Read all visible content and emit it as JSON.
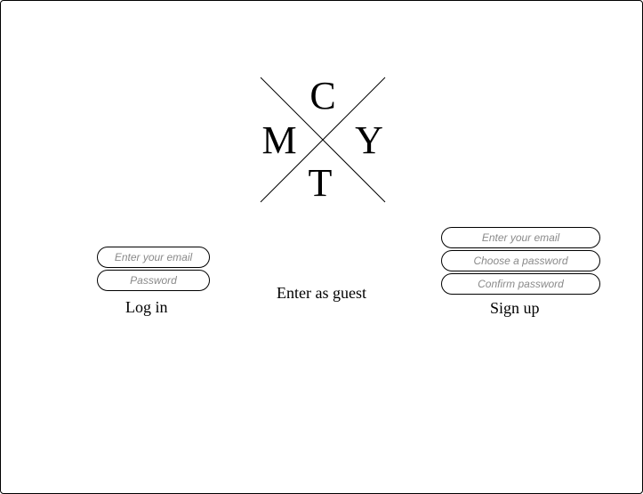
{
  "logo": {
    "top": "C",
    "left": "M",
    "right": "Y",
    "bottom": "T"
  },
  "login": {
    "email_placeholder": "Enter your email",
    "password_placeholder": "Password",
    "button_label": "Log in"
  },
  "guest": {
    "label": "Enter as guest"
  },
  "signup": {
    "email_placeholder": "Enter your email",
    "password_placeholder": "Choose a password",
    "confirm_placeholder": "Confirm password",
    "button_label": "Sign up"
  }
}
